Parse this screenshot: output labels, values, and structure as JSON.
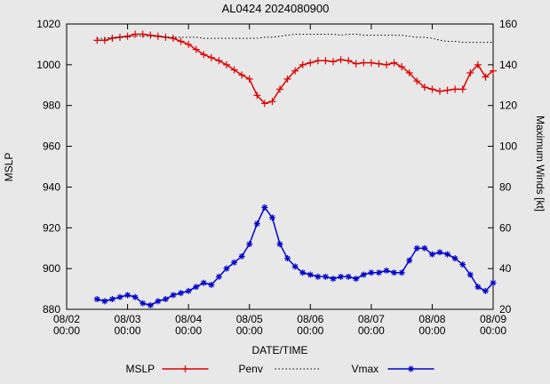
{
  "chart_data": {
    "type": "line",
    "title": "AL0424 2024080900",
    "xlabel": "DATE/TIME",
    "ylabel_left": "MSLP",
    "ylabel_right": "Maximum Winds [kt]",
    "ylim_left": [
      880,
      1020
    ],
    "ylim_right": [
      20,
      160
    ],
    "xlim_hours": [
      0,
      168
    ],
    "y_ticks_left": [
      880,
      900,
      920,
      940,
      960,
      980,
      1000,
      1020
    ],
    "y_ticks_right": [
      20,
      40,
      60,
      80,
      100,
      120,
      140,
      160
    ],
    "x_ticks": [
      {
        "date": "08/02",
        "time": "00:00"
      },
      {
        "date": "08/03",
        "time": "00:00"
      },
      {
        "date": "08/04",
        "time": "00:00"
      },
      {
        "date": "08/05",
        "time": "00:00"
      },
      {
        "date": "08/06",
        "time": "00:00"
      },
      {
        "date": "08/07",
        "time": "00:00"
      },
      {
        "date": "08/08",
        "time": "00:00"
      },
      {
        "date": "08/09",
        "time": "00:00"
      }
    ],
    "x_hours": [
      12,
      15,
      18,
      21,
      24,
      27,
      30,
      33,
      36,
      39,
      42,
      45,
      48,
      51,
      54,
      57,
      60,
      63,
      66,
      69,
      72,
      75,
      78,
      81,
      84,
      87,
      90,
      93,
      96,
      99,
      102,
      105,
      108,
      111,
      114,
      117,
      120,
      123,
      126,
      129,
      132,
      135,
      138,
      141,
      144,
      147,
      150,
      153,
      156,
      159,
      162,
      165,
      168
    ],
    "series": [
      {
        "name": "MSLP",
        "axis": "left",
        "units": "hPa",
        "color": "#e00000",
        "line": "solid",
        "marker": "plus",
        "values": [
          1012,
          1012,
          1013,
          1013.5,
          1014,
          1015,
          1015,
          1014.5,
          1014,
          1013.5,
          1013,
          1011.5,
          1010,
          1007.5,
          1005,
          1003.5,
          1002,
          1000,
          997.5,
          995,
          993,
          985,
          981,
          982,
          988,
          993,
          997,
          1000,
          1001,
          1002,
          1002,
          1001.5,
          1002.5,
          1002,
          1000.5,
          1001,
          1001,
          1000.5,
          1000,
          1001,
          999,
          996,
          992,
          989,
          988,
          987,
          987.5,
          988,
          988,
          996,
          1000,
          994,
          997
        ]
      },
      {
        "name": "Penv",
        "axis": "left",
        "units": "hPa",
        "color": "#000000",
        "line": "dotted",
        "marker": "none",
        "values": [
          1013,
          1013,
          1013.5,
          1013.5,
          1013.5,
          1014,
          1014,
          1014,
          1014,
          1013.5,
          1013.5,
          1013.5,
          1013.5,
          1013.5,
          1013,
          1013,
          1013,
          1013,
          1013,
          1013,
          1013,
          1013,
          1013.5,
          1013.5,
          1014,
          1014.5,
          1015,
          1015,
          1015,
          1015,
          1015,
          1015,
          1014.5,
          1015,
          1015,
          1014.5,
          1014.5,
          1014.5,
          1014.5,
          1014.5,
          1014.5,
          1014,
          1013.5,
          1013.5,
          1013,
          1012,
          1011.5,
          1011.5,
          1011,
          1011,
          1011,
          1011,
          1011
        ]
      },
      {
        "name": "Vmax",
        "axis": "right",
        "units": "kt",
        "color": "#0000cc",
        "line": "solid",
        "marker": "asterisk",
        "values": [
          25,
          24,
          25,
          26,
          27,
          26,
          23,
          22,
          24,
          25,
          27,
          28,
          29,
          31,
          33,
          32,
          36,
          40,
          43,
          46,
          52,
          62,
          70,
          65,
          52,
          45,
          41,
          38,
          37,
          36,
          36,
          35,
          36,
          36,
          35,
          37,
          38,
          38,
          39,
          38,
          38,
          44,
          50,
          50,
          47,
          48,
          47,
          45,
          42,
          37,
          31,
          29,
          33
        ]
      }
    ],
    "legend": {
      "position": "bottom",
      "items": [
        "MSLP",
        "Penv",
        "Vmax"
      ]
    }
  }
}
